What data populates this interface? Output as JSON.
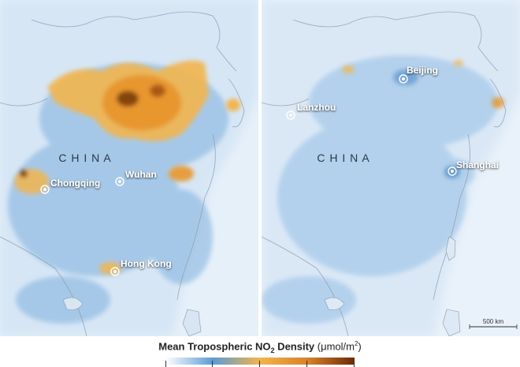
{
  "left_map": {
    "country_label": "C H I N A",
    "cities": [
      {
        "name": "Chongqing"
      },
      {
        "name": "Wuhan"
      },
      {
        "name": "Hong Kong"
      }
    ]
  },
  "right_map": {
    "country_label": "C H I N A",
    "cities": [
      {
        "name": "Beijing"
      },
      {
        "name": "Lanzhou"
      },
      {
        "name": "Shanghai"
      }
    ],
    "scale_bar_label": "500 km"
  },
  "legend": {
    "title_main": "Mean Tropospheric NO",
    "title_subscript": "2",
    "title_rest": " Density",
    "unit_open": " (μmol/m",
    "unit_superscript": "2",
    "unit_close": ")",
    "ticks": [
      "",
      "",
      "",
      "",
      ""
    ],
    "colors": [
      "#ffffff",
      "#5b9bd5",
      "#f4b44a",
      "#d9822b",
      "#6b2a05"
    ]
  }
}
